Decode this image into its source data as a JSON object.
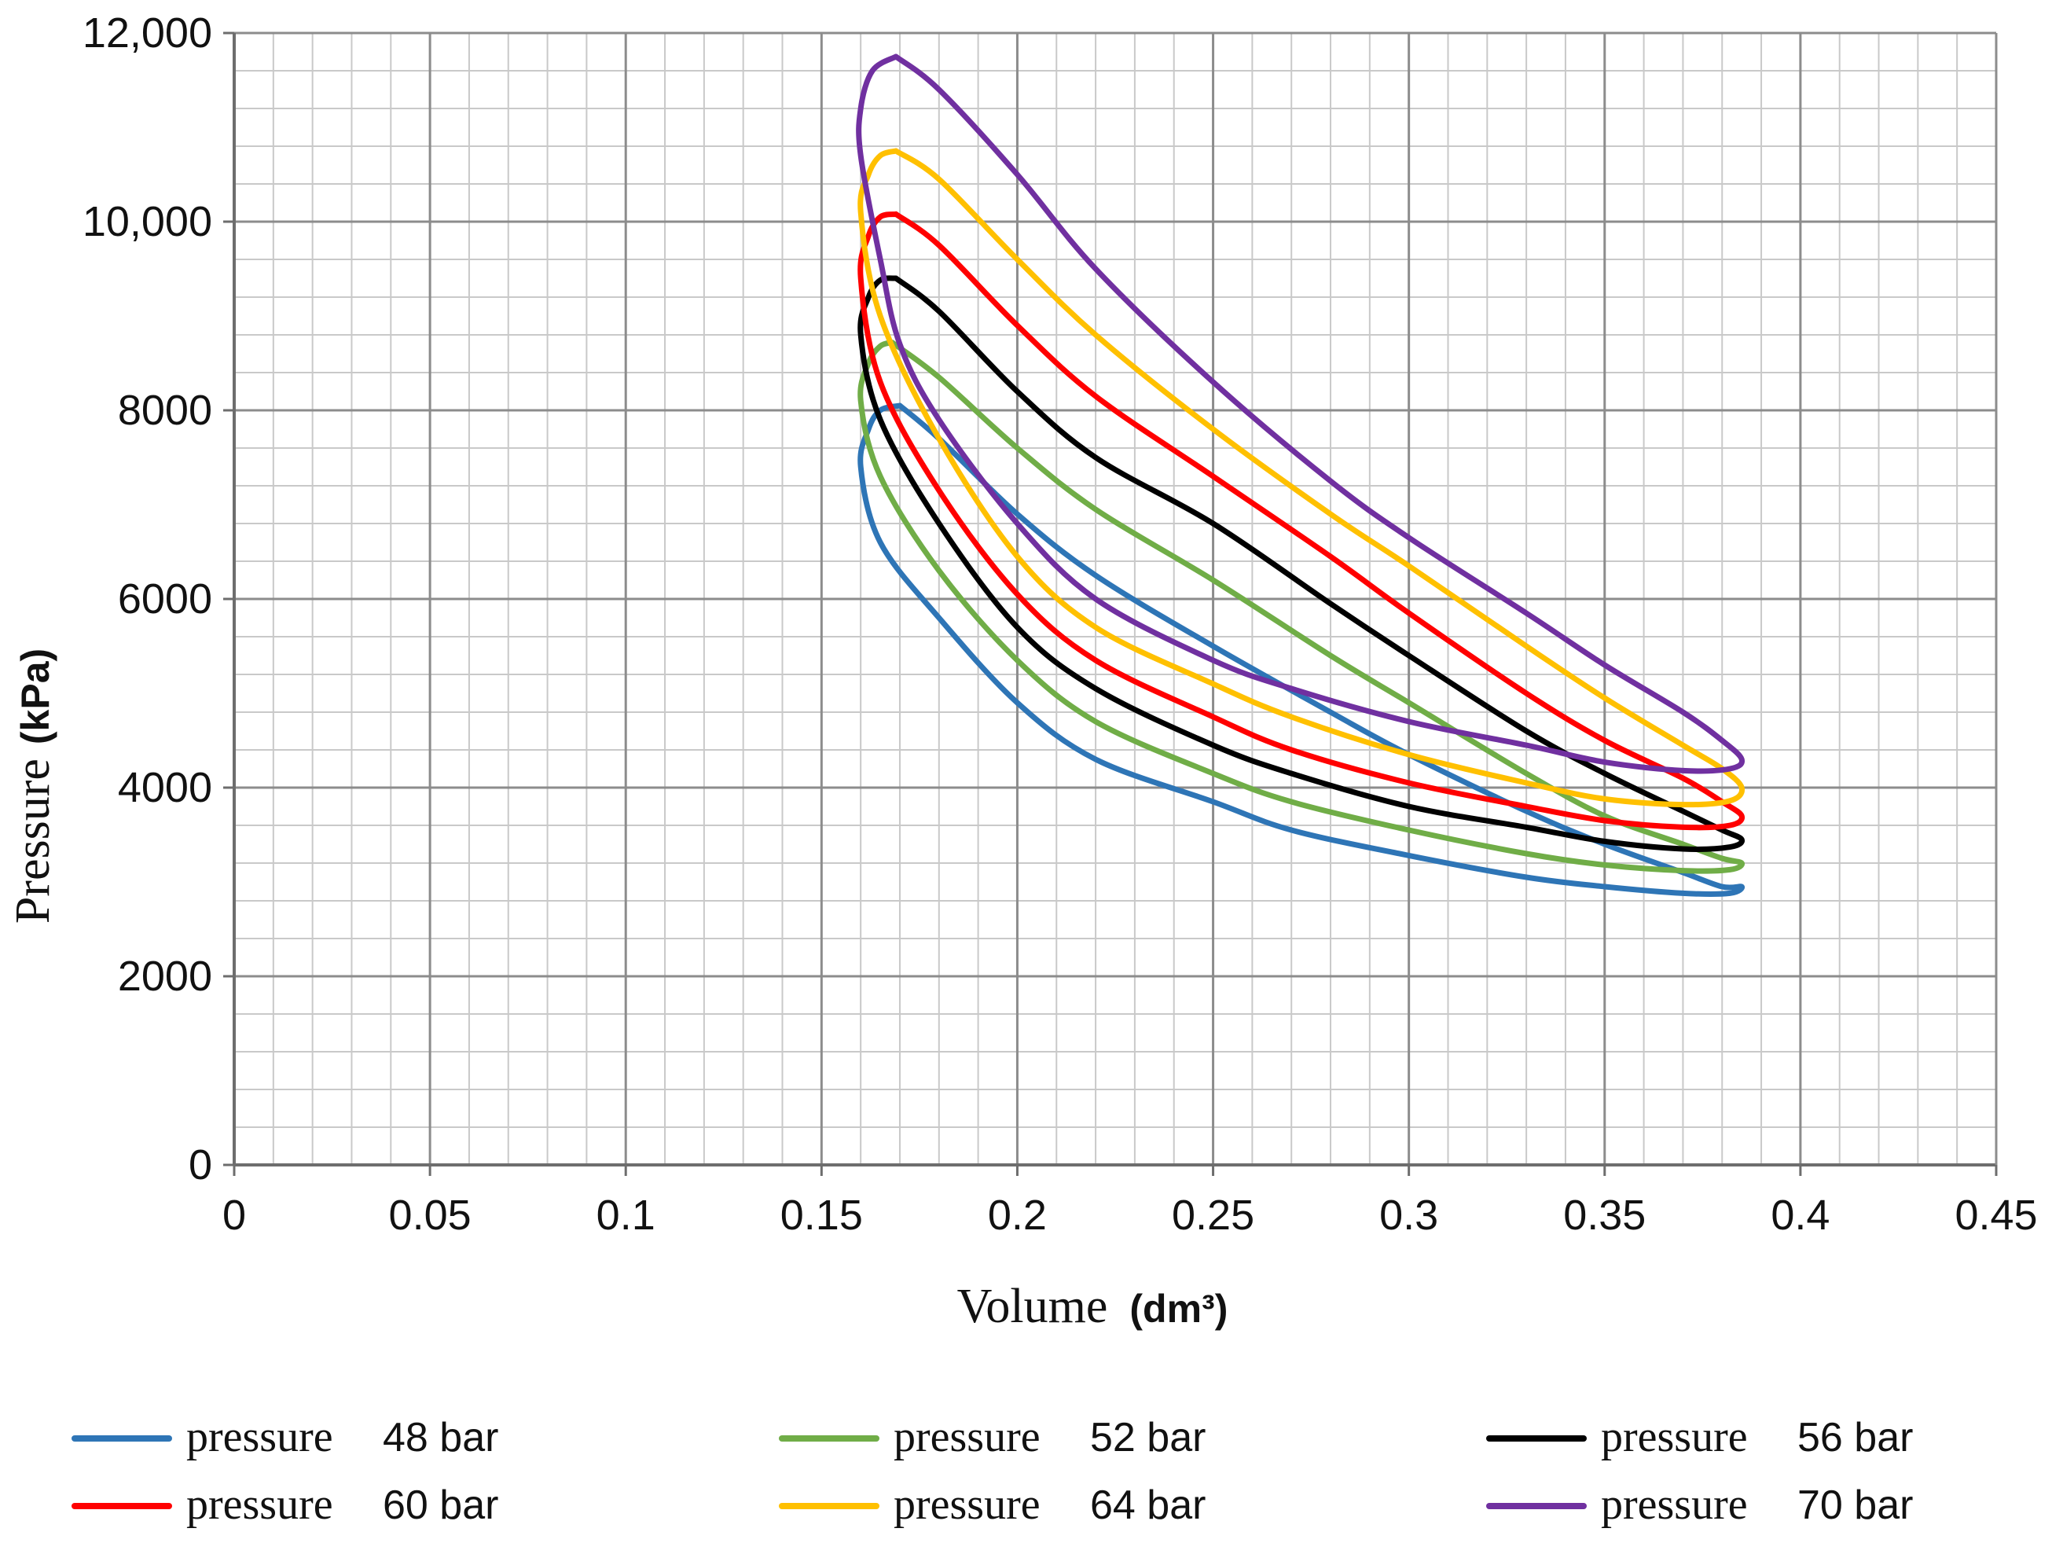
{
  "chart_data": {
    "type": "line",
    "title": "",
    "xlabel": "Volume",
    "xlabel_unit": "(dm³)",
    "ylabel": "Pressure",
    "ylabel_unit": "(kPa)",
    "xlim": [
      0,
      0.45
    ],
    "ylim": [
      0,
      12000
    ],
    "grid": true,
    "x_ticks": [
      0,
      0.05,
      0.1,
      0.15,
      0.2,
      0.25,
      0.3,
      0.35,
      0.4,
      0.45
    ],
    "x_tick_labels": [
      "0",
      "0.05",
      "0.1",
      "0.15",
      "0.2",
      "0.25",
      "0.3",
      "0.35",
      "0.4",
      "0.45"
    ],
    "y_ticks": [
      0,
      2000,
      4000,
      6000,
      8000,
      10000,
      12000
    ],
    "y_tick_labels": [
      "0",
      "2000",
      "4000",
      "6000",
      "8000",
      "10,000",
      "12,000"
    ],
    "legend_position": "bottom",
    "series": [
      {
        "name": "pressure 48 bar",
        "legend_prefix": "pressure",
        "legend_suffix": "48 bar",
        "color": "#2e75b6",
        "points": [
          [
            0.17,
            8050
          ],
          [
            0.18,
            7700
          ],
          [
            0.2,
            6900
          ],
          [
            0.22,
            6250
          ],
          [
            0.25,
            5500
          ],
          [
            0.28,
            4800
          ],
          [
            0.3,
            4350
          ],
          [
            0.33,
            3750
          ],
          [
            0.35,
            3400
          ],
          [
            0.37,
            3100
          ],
          [
            0.38,
            2950
          ],
          [
            0.385,
            2950
          ],
          [
            0.382,
            2880
          ],
          [
            0.37,
            2880
          ],
          [
            0.35,
            2950
          ],
          [
            0.33,
            3050
          ],
          [
            0.3,
            3280
          ],
          [
            0.27,
            3550
          ],
          [
            0.25,
            3850
          ],
          [
            0.22,
            4300
          ],
          [
            0.2,
            4900
          ],
          [
            0.18,
            5800
          ],
          [
            0.165,
            6600
          ],
          [
            0.16,
            7400
          ],
          [
            0.162,
            7800
          ],
          [
            0.165,
            8000
          ],
          [
            0.17,
            8050
          ]
        ]
      },
      {
        "name": "pressure 52 bar",
        "legend_prefix": "pressure",
        "legend_suffix": "52 bar",
        "color": "#70ad47",
        "points": [
          [
            0.168,
            8720
          ],
          [
            0.18,
            8350
          ],
          [
            0.2,
            7600
          ],
          [
            0.22,
            6950
          ],
          [
            0.25,
            6200
          ],
          [
            0.28,
            5400
          ],
          [
            0.3,
            4900
          ],
          [
            0.33,
            4150
          ],
          [
            0.35,
            3700
          ],
          [
            0.37,
            3400
          ],
          [
            0.38,
            3250
          ],
          [
            0.385,
            3200
          ],
          [
            0.382,
            3130
          ],
          [
            0.37,
            3120
          ],
          [
            0.35,
            3180
          ],
          [
            0.33,
            3300
          ],
          [
            0.3,
            3550
          ],
          [
            0.27,
            3850
          ],
          [
            0.25,
            4150
          ],
          [
            0.22,
            4700
          ],
          [
            0.2,
            5350
          ],
          [
            0.18,
            6300
          ],
          [
            0.165,
            7300
          ],
          [
            0.16,
            8100
          ],
          [
            0.162,
            8500
          ],
          [
            0.165,
            8680
          ],
          [
            0.168,
            8720
          ]
        ]
      },
      {
        "name": "pressure 56 bar",
        "legend_prefix": "pressure",
        "legend_suffix": "56 bar",
        "color": "#000000",
        "points": [
          [
            0.169,
            9400
          ],
          [
            0.18,
            9050
          ],
          [
            0.2,
            8200
          ],
          [
            0.22,
            7500
          ],
          [
            0.25,
            6800
          ],
          [
            0.28,
            5950
          ],
          [
            0.3,
            5400
          ],
          [
            0.33,
            4600
          ],
          [
            0.35,
            4150
          ],
          [
            0.37,
            3750
          ],
          [
            0.38,
            3550
          ],
          [
            0.385,
            3450
          ],
          [
            0.382,
            3370
          ],
          [
            0.37,
            3350
          ],
          [
            0.35,
            3430
          ],
          [
            0.33,
            3580
          ],
          [
            0.3,
            3800
          ],
          [
            0.27,
            4150
          ],
          [
            0.25,
            4450
          ],
          [
            0.22,
            5050
          ],
          [
            0.2,
            5700
          ],
          [
            0.18,
            6800
          ],
          [
            0.165,
            7900
          ],
          [
            0.16,
            8800
          ],
          [
            0.162,
            9200
          ],
          [
            0.165,
            9380
          ],
          [
            0.169,
            9400
          ]
        ]
      },
      {
        "name": "pressure 60 bar",
        "legend_prefix": "pressure",
        "legend_suffix": "60 bar",
        "color": "#ff0000",
        "points": [
          [
            0.169,
            10080
          ],
          [
            0.18,
            9750
          ],
          [
            0.2,
            8900
          ],
          [
            0.22,
            8150
          ],
          [
            0.25,
            7300
          ],
          [
            0.28,
            6450
          ],
          [
            0.3,
            5850
          ],
          [
            0.33,
            5000
          ],
          [
            0.35,
            4500
          ],
          [
            0.37,
            4100
          ],
          [
            0.38,
            3850
          ],
          [
            0.385,
            3700
          ],
          [
            0.382,
            3600
          ],
          [
            0.37,
            3580
          ],
          [
            0.35,
            3650
          ],
          [
            0.33,
            3800
          ],
          [
            0.3,
            4050
          ],
          [
            0.27,
            4400
          ],
          [
            0.25,
            4750
          ],
          [
            0.22,
            5350
          ],
          [
            0.2,
            6050
          ],
          [
            0.18,
            7150
          ],
          [
            0.165,
            8300
          ],
          [
            0.16,
            9400
          ],
          [
            0.162,
            9850
          ],
          [
            0.165,
            10050
          ],
          [
            0.169,
            10080
          ]
        ]
      },
      {
        "name": "pressure 64 bar",
        "legend_prefix": "pressure",
        "legend_suffix": "64 bar",
        "color": "#ffc000",
        "points": [
          [
            0.169,
            10750
          ],
          [
            0.18,
            10450
          ],
          [
            0.2,
            9600
          ],
          [
            0.22,
            8800
          ],
          [
            0.25,
            7800
          ],
          [
            0.28,
            6900
          ],
          [
            0.3,
            6350
          ],
          [
            0.33,
            5500
          ],
          [
            0.35,
            4950
          ],
          [
            0.37,
            4450
          ],
          [
            0.38,
            4200
          ],
          [
            0.385,
            4000
          ],
          [
            0.382,
            3860
          ],
          [
            0.37,
            3820
          ],
          [
            0.35,
            3880
          ],
          [
            0.33,
            4050
          ],
          [
            0.3,
            4350
          ],
          [
            0.27,
            4750
          ],
          [
            0.25,
            5100
          ],
          [
            0.22,
            5700
          ],
          [
            0.2,
            6450
          ],
          [
            0.18,
            7700
          ],
          [
            0.165,
            9000
          ],
          [
            0.16,
            10100
          ],
          [
            0.162,
            10500
          ],
          [
            0.165,
            10700
          ],
          [
            0.169,
            10750
          ]
        ]
      },
      {
        "name": "pressure 70 bar",
        "legend_prefix": "pressure",
        "legend_suffix": "70 bar",
        "color": "#7030a0",
        "points": [
          [
            0.169,
            11750
          ],
          [
            0.18,
            11400
          ],
          [
            0.2,
            10500
          ],
          [
            0.22,
            9500
          ],
          [
            0.25,
            8300
          ],
          [
            0.28,
            7250
          ],
          [
            0.3,
            6650
          ],
          [
            0.33,
            5850
          ],
          [
            0.35,
            5300
          ],
          [
            0.37,
            4800
          ],
          [
            0.38,
            4500
          ],
          [
            0.385,
            4300
          ],
          [
            0.382,
            4200
          ],
          [
            0.37,
            4180
          ],
          [
            0.35,
            4270
          ],
          [
            0.33,
            4450
          ],
          [
            0.3,
            4700
          ],
          [
            0.27,
            5050
          ],
          [
            0.25,
            5350
          ],
          [
            0.22,
            6000
          ],
          [
            0.2,
            6800
          ],
          [
            0.18,
            7900
          ],
          [
            0.17,
            8700
          ],
          [
            0.165,
            9600
          ],
          [
            0.16,
            10700
          ],
          [
            0.16,
            11200
          ],
          [
            0.163,
            11600
          ],
          [
            0.169,
            11750
          ]
        ]
      }
    ]
  }
}
